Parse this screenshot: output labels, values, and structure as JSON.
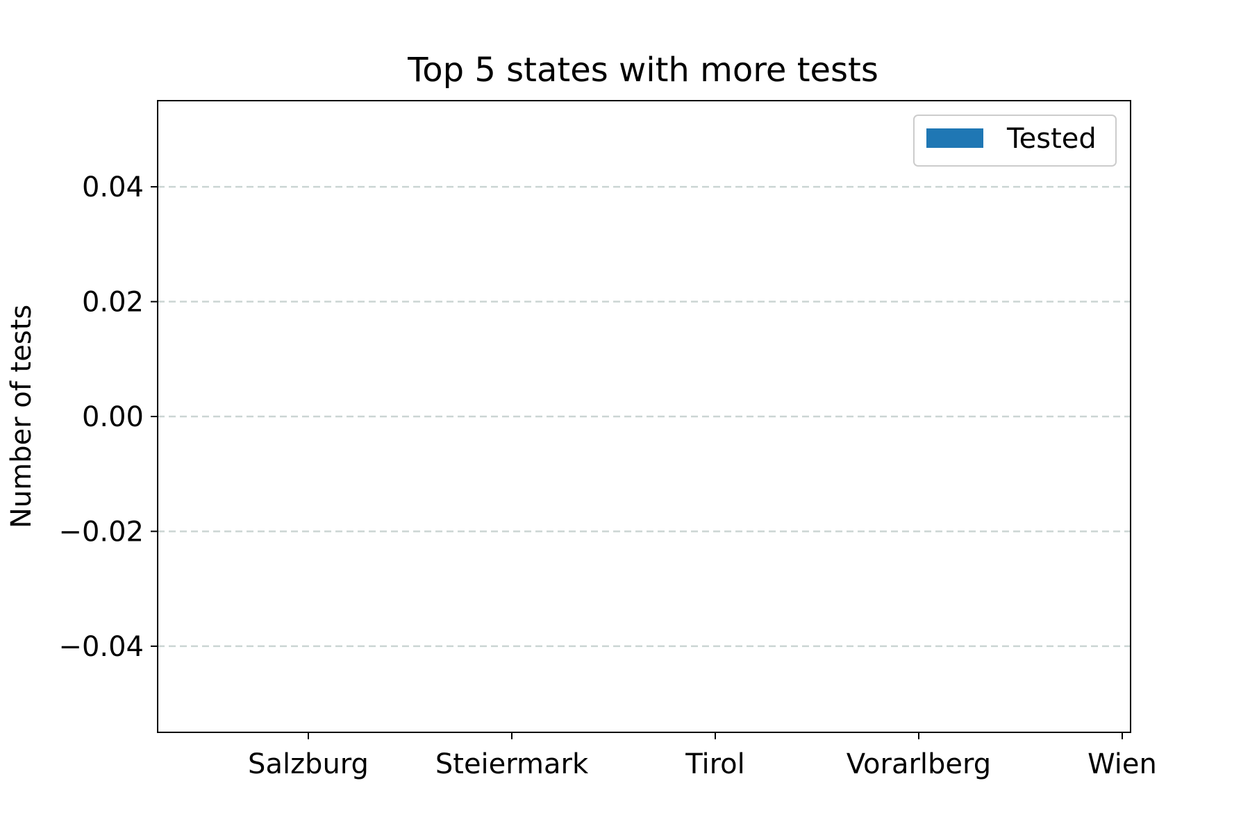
{
  "chart_data": {
    "type": "bar",
    "title": "Top 5 states with more tests",
    "xlabel": "",
    "ylabel": "Number of tests",
    "categories": [
      "Salzburg",
      "Steiermark",
      "Tirol",
      "Vorarlberg",
      "Wien"
    ],
    "series": [
      {
        "name": "Tested",
        "color": "#1f77b4",
        "values": [
          0,
          0,
          0,
          0,
          0
        ]
      }
    ],
    "ylim": [
      -0.055,
      0.055
    ],
    "yticks": [
      -0.04,
      -0.02,
      0.0,
      0.02,
      0.04
    ],
    "ytick_labels": [
      "−0.04",
      "−0.02",
      "0.00",
      "0.02",
      "0.04"
    ],
    "grid": "y-dashed",
    "grid_color": "#cbd5d3",
    "legend_position": "upper right"
  }
}
